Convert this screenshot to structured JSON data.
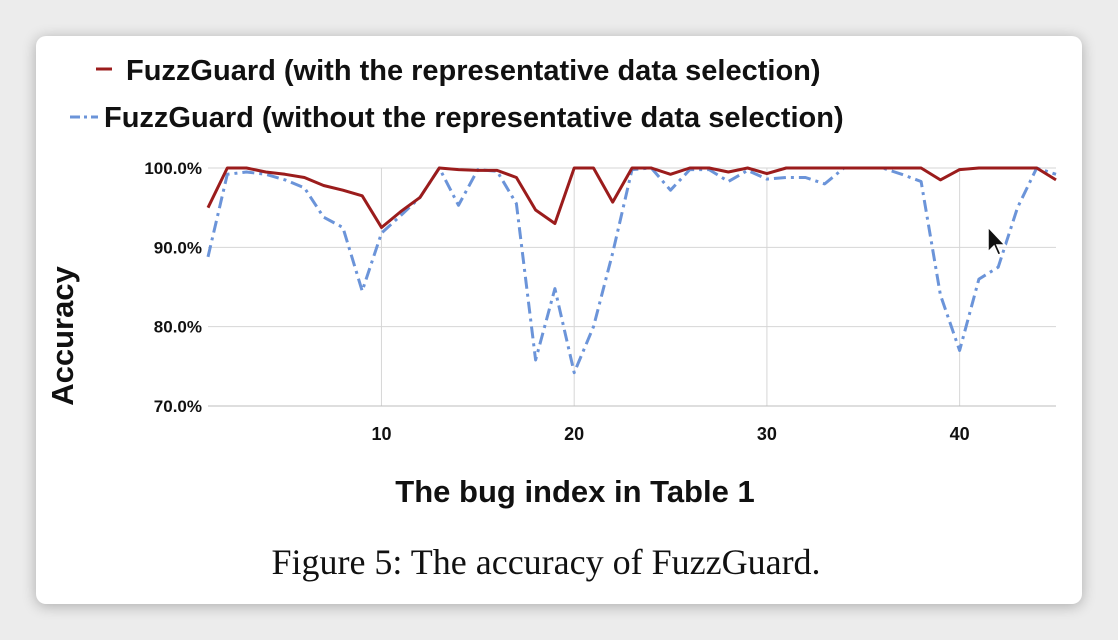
{
  "figure": {
    "caption": "Figure 5: The accuracy of FuzzGuard."
  },
  "chart_data": {
    "type": "line",
    "xlabel": "The bug index in Table 1",
    "ylabel": "Accuracy",
    "x_ticks": [
      10,
      20,
      30,
      40
    ],
    "y_ticks": [
      "70.0%",
      "80.0%",
      "90.0%",
      "100.0%"
    ],
    "xlim": [
      1,
      45
    ],
    "ylim": [
      70,
      100
    ],
    "grid": true,
    "legend_position": "top",
    "x": [
      1,
      2,
      3,
      4,
      5,
      6,
      7,
      8,
      9,
      10,
      11,
      12,
      13,
      14,
      15,
      16,
      17,
      18,
      19,
      20,
      21,
      22,
      23,
      24,
      25,
      26,
      27,
      28,
      29,
      30,
      31,
      32,
      33,
      34,
      35,
      36,
      37,
      38,
      39,
      40,
      41,
      42,
      43,
      44,
      45
    ],
    "series": [
      {
        "name": "FuzzGuard (with the representative data selection)",
        "color": "#9b1c1c",
        "style": "solid",
        "values": [
          95,
          100,
          100,
          99.5,
          99.2,
          98.8,
          97.8,
          97.2,
          96.5,
          92.5,
          94.5,
          96.3,
          100,
          99.8,
          99.7,
          99.7,
          98.8,
          94.7,
          93.0,
          100,
          100,
          95.7,
          100,
          100,
          99.2,
          100,
          100,
          99.5,
          100,
          99.3,
          100,
          100,
          100,
          100,
          100,
          100,
          100,
          100,
          98.5,
          99.8,
          100,
          100,
          100,
          100,
          98.5
        ]
      },
      {
        "name": "FuzzGuard (without the representative data selection)",
        "color": "#6b94d9",
        "style": "dash-dot",
        "values": [
          88.8,
          99.2,
          99.5,
          99.2,
          98.5,
          97.5,
          93.8,
          92.5,
          84.5,
          91.8,
          94,
          96.3,
          100,
          95.3,
          99.8,
          99.6,
          95.5,
          75.8,
          84.8,
          74.2,
          80,
          89.3,
          99.8,
          100,
          97.2,
          99.8,
          99.8,
          98.3,
          99.7,
          98.6,
          98.8,
          98.8,
          98.0,
          100,
          100,
          100,
          99.2,
          98.3,
          84.0,
          77.0,
          86.0,
          87.5,
          95.0,
          100,
          99.2
        ]
      }
    ]
  }
}
